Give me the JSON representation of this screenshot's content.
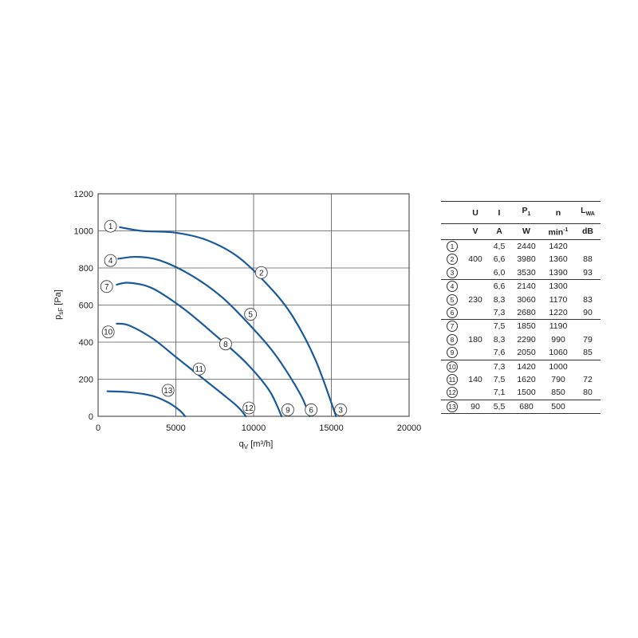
{
  "chart_data": [
    {
      "type": "line",
      "title": "",
      "xlabel": "q",
      "xlabel_sub": "V",
      "xlabel_unit": "[m³/h]",
      "ylabel": "p",
      "ylabel_sub": "sF",
      "ylabel_unit": "[Pa]",
      "xlim": [
        0,
        20000
      ],
      "ylim": [
        0,
        1200
      ],
      "xticks": [
        0,
        5000,
        10000,
        15000,
        20000
      ],
      "yticks": [
        0,
        200,
        400,
        600,
        800,
        1000,
        1200
      ],
      "x_tick_labels": [
        "0",
        "5000",
        "10000",
        "15000",
        "20000"
      ],
      "y_tick_labels": [
        "0",
        "200",
        "400",
        "600",
        "800",
        "1000",
        "1200"
      ],
      "grid": true,
      "line_color": "#1a5a9c",
      "series": [
        {
          "name": "1-3",
          "x": [
            1400,
            2800,
            5000,
            7000,
            9000,
            11000,
            12500,
            14000,
            15300
          ],
          "y": [
            1020,
            1000,
            990,
            950,
            860,
            700,
            540,
            300,
            0
          ]
        },
        {
          "name": "4-6",
          "x": [
            1300,
            2500,
            4000,
            6000,
            8000,
            10000,
            11500,
            13000,
            13600
          ],
          "y": [
            850,
            860,
            840,
            760,
            640,
            470,
            320,
            120,
            0
          ]
        },
        {
          "name": "7-9",
          "x": [
            1200,
            2000,
            3500,
            5500,
            7500,
            9500,
            11000,
            11800
          ],
          "y": [
            710,
            720,
            690,
            580,
            440,
            290,
            140,
            0
          ]
        },
        {
          "name": "10-12",
          "x": [
            1200,
            2000,
            3500,
            5000,
            6500,
            8000,
            9000,
            9500
          ],
          "y": [
            500,
            490,
            420,
            320,
            220,
            120,
            50,
            0
          ]
        },
        {
          "name": "13",
          "x": [
            600,
            2000,
            3500,
            4500,
            5200,
            5600
          ],
          "y": [
            135,
            130,
            110,
            75,
            35,
            0
          ]
        }
      ],
      "markers": [
        {
          "id": "1",
          "label": "1",
          "x": 800,
          "y": 1025
        },
        {
          "id": "2",
          "label": "2",
          "x": 10500,
          "y": 775
        },
        {
          "id": "3",
          "label": "3",
          "x": 15600,
          "y": 35
        },
        {
          "id": "4",
          "label": "4",
          "x": 800,
          "y": 840
        },
        {
          "id": "5",
          "label": "5",
          "x": 9800,
          "y": 550
        },
        {
          "id": "6",
          "label": "6",
          "x": 13700,
          "y": 35
        },
        {
          "id": "7",
          "label": "7",
          "x": 550,
          "y": 700
        },
        {
          "id": "8",
          "label": "8",
          "x": 8200,
          "y": 390
        },
        {
          "id": "9",
          "label": "9",
          "x": 12200,
          "y": 35
        },
        {
          "id": "10",
          "label": "10",
          "x": 650,
          "y": 455
        },
        {
          "id": "11",
          "label": "11",
          "x": 6500,
          "y": 255
        },
        {
          "id": "12",
          "label": "12",
          "x": 9700,
          "y": 45
        },
        {
          "id": "13",
          "label": "13",
          "x": 4500,
          "y": 140
        }
      ]
    },
    {
      "type": "table",
      "header": [
        "U",
        "I",
        "P1",
        "n",
        "LWA"
      ],
      "units": [
        "V",
        "A",
        "W",
        "min-1",
        "dB"
      ],
      "rows": [
        [
          "1",
          "",
          "4,5",
          "2440",
          "1420",
          ""
        ],
        [
          "2",
          "400",
          "6,6",
          "3980",
          "1360",
          "88"
        ],
        [
          "3",
          "",
          "6,0",
          "3530",
          "1390",
          "93"
        ],
        [
          "4",
          "",
          "6,6",
          "2140",
          "1300",
          ""
        ],
        [
          "5",
          "230",
          "8,3",
          "3060",
          "1170",
          "83"
        ],
        [
          "6",
          "",
          "7,3",
          "2680",
          "1220",
          "90"
        ],
        [
          "7",
          "",
          "7,5",
          "1850",
          "1190",
          ""
        ],
        [
          "8",
          "180",
          "8,3",
          "2290",
          "990",
          "79"
        ],
        [
          "9",
          "",
          "7,6",
          "2050",
          "1060",
          "85"
        ],
        [
          "10",
          "",
          "7,3",
          "1420",
          "1000",
          ""
        ],
        [
          "11",
          "140",
          "7,5",
          "1620",
          "790",
          "72"
        ],
        [
          "12",
          "",
          "7,1",
          "1500",
          "850",
          "80"
        ],
        [
          "13",
          "90",
          "5,5",
          "680",
          "500",
          ""
        ]
      ]
    }
  ],
  "table": {
    "h_u": "U",
    "h_i": "I",
    "h_p": "P",
    "h_p_sub": "1",
    "h_n": "n",
    "h_l": "L",
    "h_l_sub": "WA",
    "u_u": "V",
    "u_i": "A",
    "u_p": "W",
    "u_n": "min",
    "u_n_sup": "-1",
    "u_l": "dB"
  }
}
